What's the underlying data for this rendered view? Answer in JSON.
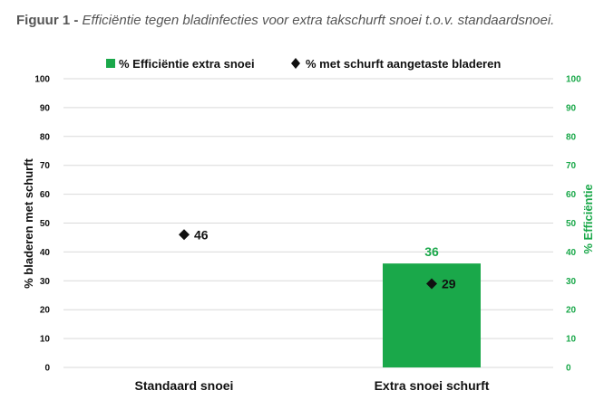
{
  "caption": {
    "lead": "Figuur 1 -",
    "text": "Efficiëntie tegen bladinfecties voor extra takschurft snoei t.o.v. standaardsnoei."
  },
  "colors": {
    "efficiency": "#1aa84a",
    "scab": "#111111",
    "grid": "#d9d9d9"
  },
  "chart_data": {
    "type": "bar",
    "categories": [
      "Standaard snoei",
      "Extra snoei schurft"
    ],
    "series": [
      {
        "name": "% Efficiëntie extra snoei",
        "type": "bar",
        "axis": "right",
        "values": [
          null,
          36
        ],
        "color": "#1aa84a"
      },
      {
        "name": "% met schurft aangetaste bladeren",
        "type": "scatter",
        "marker": "diamond",
        "axis": "left",
        "values": [
          46,
          29
        ],
        "color": "#111111"
      }
    ],
    "ylabel": "% bladeren met schurft",
    "y2label": "% Efficiëntie",
    "ylim": [
      0,
      100
    ],
    "y2lim": [
      0,
      100
    ],
    "yticks": [
      0,
      10,
      20,
      30,
      40,
      50,
      60,
      70,
      80,
      90,
      100
    ],
    "grid": true,
    "legend": "top-center"
  }
}
